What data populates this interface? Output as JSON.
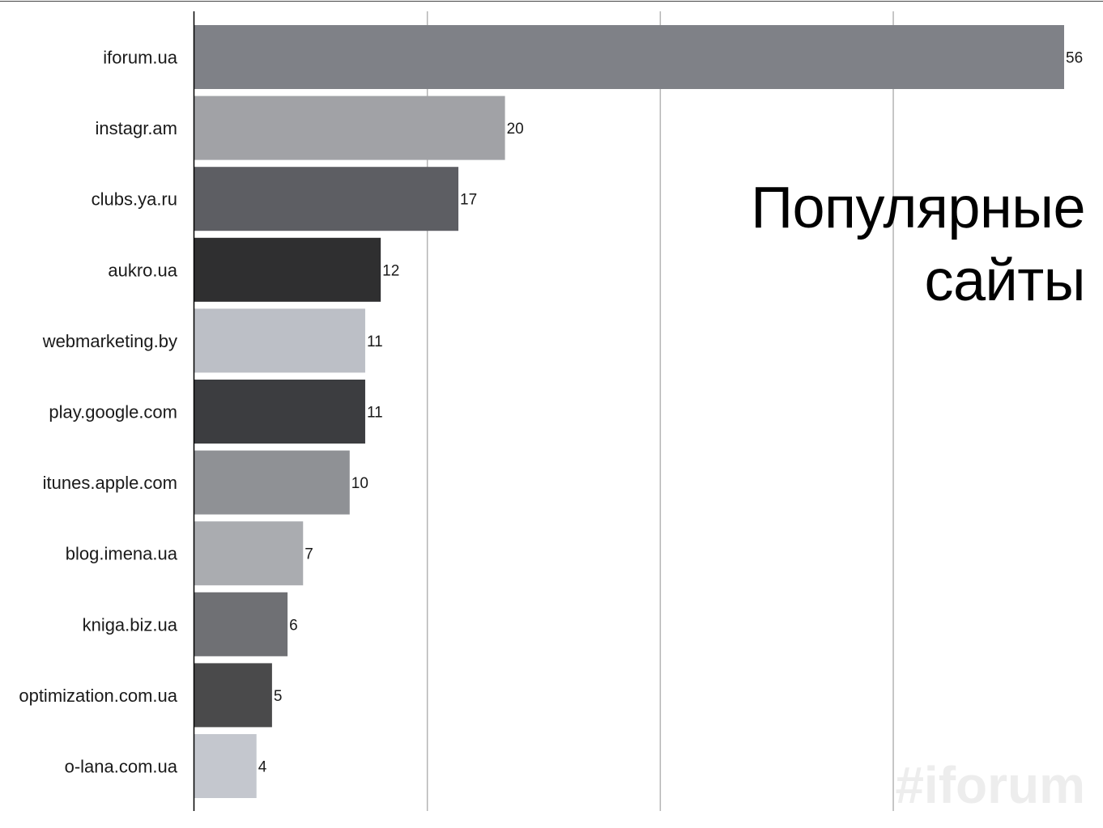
{
  "slide": {
    "title_line1": "Популярные",
    "title_line2": "сайты",
    "watermark": "#iforum"
  },
  "chart_data": {
    "type": "bar",
    "orientation": "horizontal",
    "categories": [
      "iforum.ua",
      "instagr.am",
      "clubs.ya.ru",
      "aukro.ua",
      "webmarketing.by",
      "play.google.com",
      "itunes.apple.com",
      "blog.imena.ua",
      "kniga.biz.ua",
      "optimization.com.ua",
      "o-lana.com.ua"
    ],
    "values": [
      56,
      20,
      17,
      12,
      11,
      11,
      10,
      7,
      6,
      5,
      4
    ],
    "bar_colors": [
      "#7f8187",
      "#a1a2a6",
      "#5d5e63",
      "#2f2f30",
      "#bcbfc6",
      "#3c3d40",
      "#8f9195",
      "#aaacb0",
      "#6f7074",
      "#4a4a4b",
      "#c4c7ce"
    ],
    "xlim": [
      0,
      60
    ],
    "x_gridlines": [
      15,
      30,
      45
    ],
    "grid": true,
    "data_labels": true,
    "title": "",
    "xlabel": "",
    "ylabel": ""
  }
}
